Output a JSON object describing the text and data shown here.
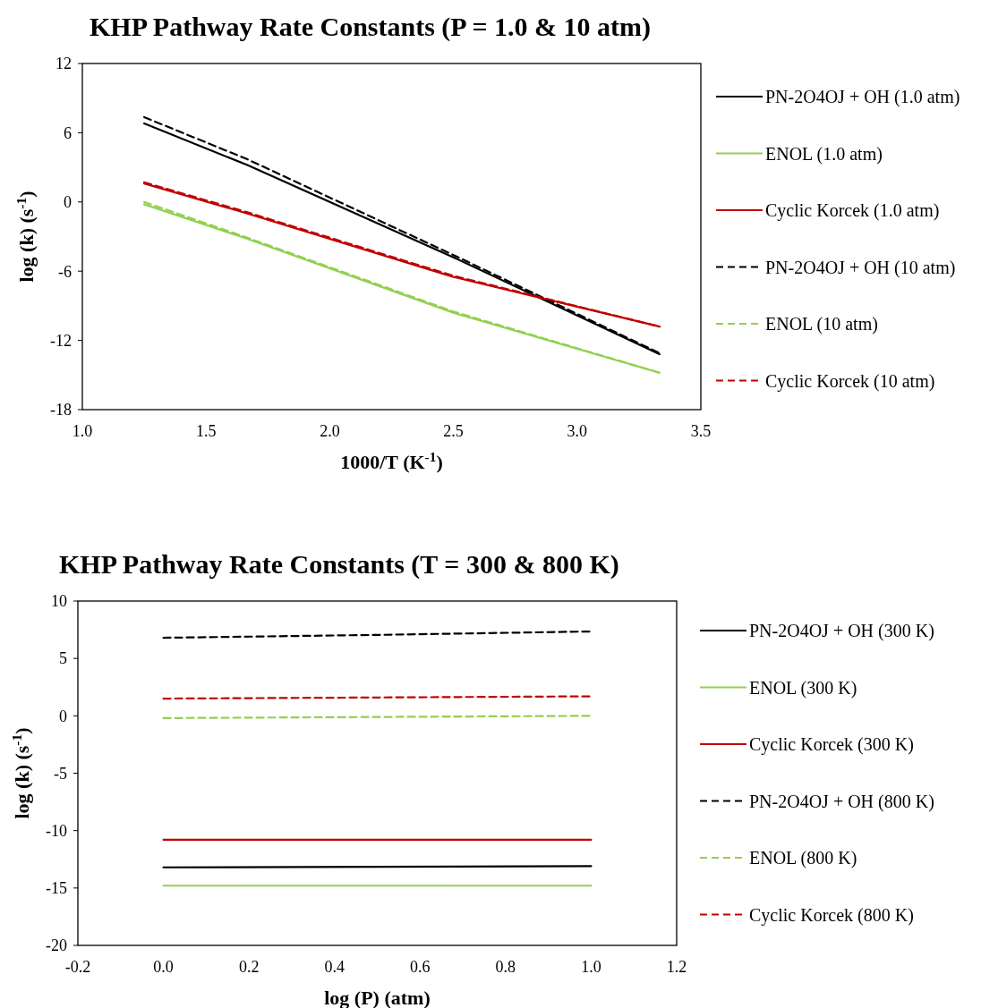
{
  "chart_data": [
    {
      "type": "line",
      "title": "KHP Pathway Rate Constants (P = 1.0 & 10 atm)",
      "xlabel": "1000/T (K$^{-1}$)",
      "ylabel": "log (k) (s$^{-1}$)",
      "xlim": [
        1.0,
        3.5
      ],
      "xticks": [
        {
          "value": 1.0,
          "label": "1.0"
        },
        {
          "value": 1.5,
          "label": "1.5"
        },
        {
          "value": 2.0,
          "label": "2.0"
        },
        {
          "value": 2.5,
          "label": "2.5"
        },
        {
          "value": 3.0,
          "label": "3.0"
        },
        {
          "value": 3.5,
          "label": "3.5"
        }
      ],
      "ylim": [
        -18,
        12
      ],
      "yticks": [
        -18,
        -12,
        -6,
        0,
        6,
        12
      ],
      "grid": false,
      "legend": "right",
      "marker": "none",
      "x": [
        1.25,
        1.667,
        2.5,
        3.333
      ],
      "series": [
        {
          "name": "PN-2O4OJ + OH (1.0 atm)",
          "color": "#000000",
          "line_style": "solid",
          "values": [
            6.8,
            3.2,
            -4.8,
            -13.2
          ]
        },
        {
          "name": "ENOL (1.0 atm)",
          "color": "#92d050",
          "line_style": "solid",
          "values": [
            -0.2,
            -3.2,
            -9.6,
            -14.8
          ]
        },
        {
          "name": "Cyclic Korcek (1.0 atm)",
          "color": "#c00000",
          "line_style": "solid",
          "values": [
            1.6,
            -1.0,
            -6.5,
            -10.8
          ]
        },
        {
          "name": "PN-2O4OJ + OH (10 atm)",
          "color": "#000000",
          "line_style": "dashed",
          "values": [
            7.35,
            3.7,
            -4.6,
            -13.1
          ]
        },
        {
          "name": "ENOL (10 atm)",
          "color": "#92d050",
          "line_style": "dashed",
          "values": [
            0.0,
            -3.1,
            -9.5,
            -14.8
          ]
        },
        {
          "name": "Cyclic Korcek (10 atm)",
          "color": "#c00000",
          "line_style": "dashed",
          "values": [
            1.7,
            -0.9,
            -6.4,
            -10.8
          ]
        }
      ]
    },
    {
      "type": "line",
      "title": "KHP Pathway Rate Constants (T = 300 & 800 K)",
      "xlabel": "log (P) (atm)",
      "ylabel": "log (k) (s$^{-1}$)",
      "xlim": [
        -0.2,
        1.2
      ],
      "xticks": [
        -0.2,
        {
          "value": 0.0,
          "label": "0.0"
        },
        0.2,
        0.4,
        0.6,
        0.8,
        {
          "value": 1.0,
          "label": "1.0"
        },
        1.2
      ],
      "ylim": [
        -20,
        10
      ],
      "yticks": [
        -20,
        -15,
        -10,
        -5,
        0,
        5,
        10
      ],
      "grid": false,
      "legend": "right",
      "marker": "none",
      "x": [
        0,
        0.5,
        1
      ],
      "series": [
        {
          "name": "PN-2O4OJ + OH (300 K)",
          "color": "#000000",
          "line_style": "solid",
          "values": [
            -13.2,
            -13.15,
            -13.1
          ]
        },
        {
          "name": "ENOL (300 K)",
          "color": "#92d050",
          "line_style": "solid",
          "values": [
            -14.8,
            -14.8,
            -14.8
          ]
        },
        {
          "name": "Cyclic Korcek (300 K)",
          "color": "#c00000",
          "line_style": "solid",
          "values": [
            -10.8,
            -10.8,
            -10.8
          ]
        },
        {
          "name": "PN-2O4OJ + OH (800 K)",
          "color": "#000000",
          "line_style": "dashed",
          "values": [
            6.8,
            7.05,
            7.35
          ]
        },
        {
          "name": "ENOL (800 K)",
          "color": "#92d050",
          "line_style": "dashed",
          "values": [
            -0.2,
            -0.1,
            0.0
          ]
        },
        {
          "name": "Cyclic Korcek (800 K)",
          "color": "#c00000",
          "line_style": "dashed",
          "values": [
            1.5,
            1.6,
            1.7
          ]
        }
      ]
    }
  ]
}
